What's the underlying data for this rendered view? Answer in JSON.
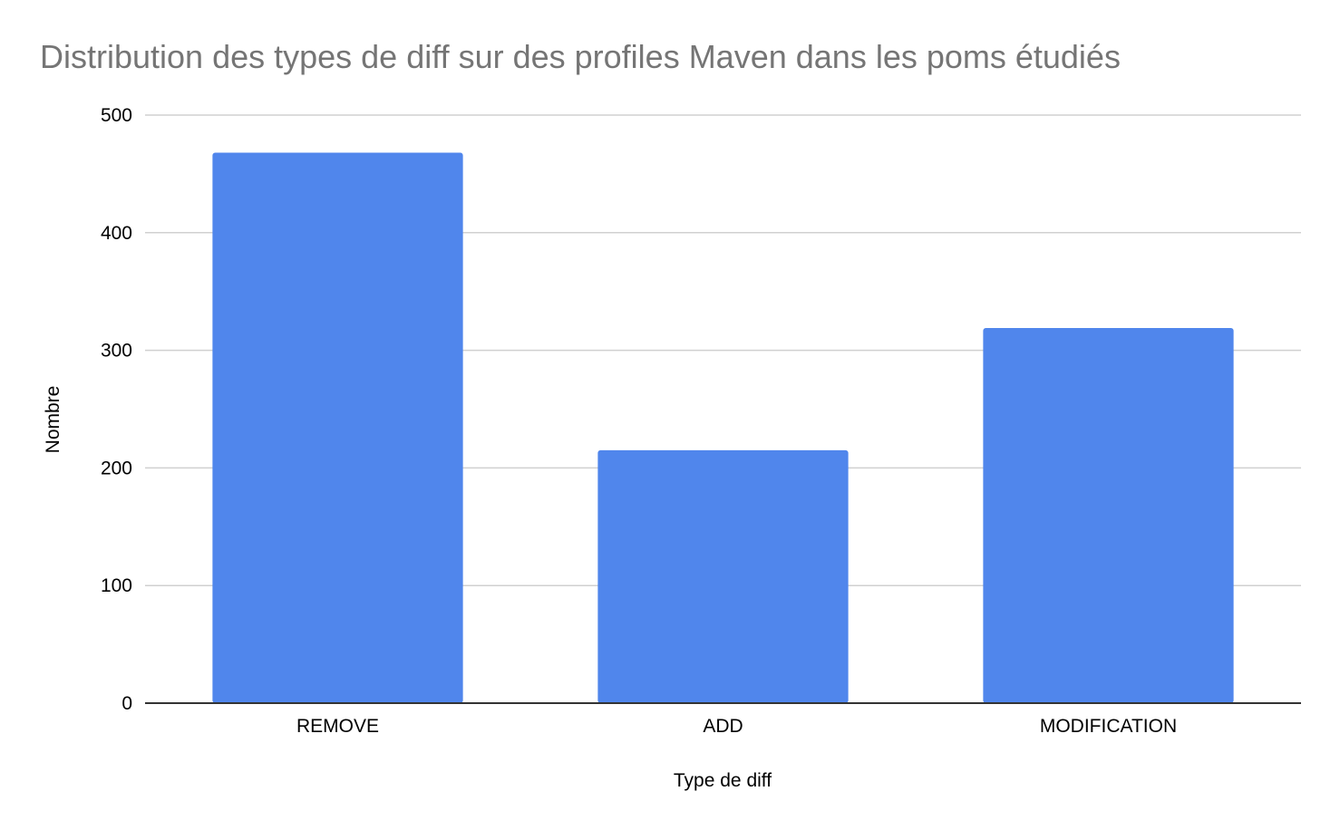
{
  "chart_data": {
    "type": "bar",
    "title": "Distribution des types de diff sur des profiles Maven dans les poms étudiés",
    "xlabel": "Type de diff",
    "ylabel": "Nombre",
    "categories": [
      "REMOVE",
      "ADD",
      "MODIFICATION"
    ],
    "values": [
      468,
      215,
      319
    ],
    "ylim": [
      0,
      500
    ],
    "yticks": [
      0,
      100,
      200,
      300,
      400,
      500
    ],
    "ytick_labels": [
      "0",
      "100",
      "200",
      "300",
      "400",
      "500"
    ],
    "grid": true,
    "legend": "none",
    "bar_color": "#5086ec"
  }
}
